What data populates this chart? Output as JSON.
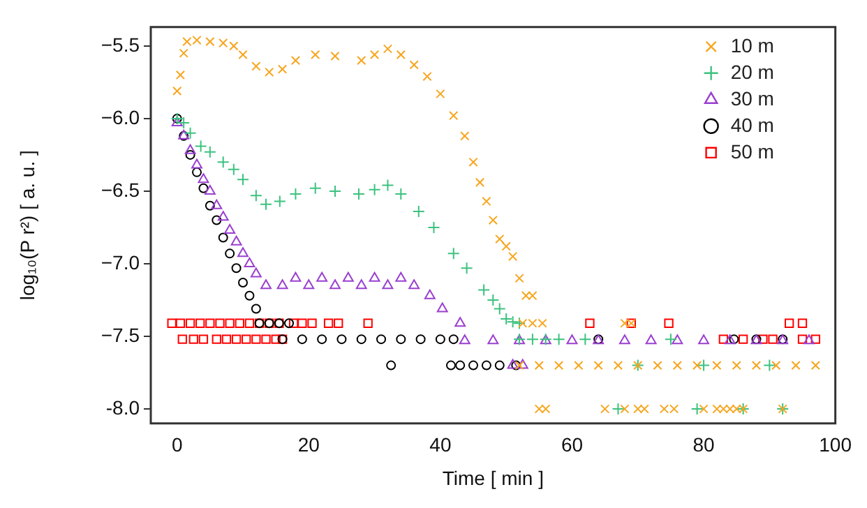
{
  "chart_data": {
    "type": "scatter",
    "xlabel": "Time [ min ]",
    "ylabel": "log₁₀(P r²) [ a. u. ]",
    "xlim": [
      -4,
      100
    ],
    "xticks": [
      0,
      20,
      40,
      60,
      80,
      100
    ],
    "ylim": [
      -8.1,
      -5.37
    ],
    "yticks": [
      {
        "value": -5.5,
        "label": "−5.5"
      },
      {
        "value": -6.0,
        "label": "−6.0"
      },
      {
        "value": -6.5,
        "label": "−6.5"
      },
      {
        "value": -7.0,
        "label": "−7.0"
      },
      {
        "value": -7.5,
        "label": "−7.5"
      },
      {
        "value": -8.0,
        "label": "-8.0"
      }
    ],
    "legend": "top right",
    "series": [
      {
        "name": "10 m",
        "color": "#f7a51e",
        "marker": "cross",
        "x": [
          0,
          0.5,
          1,
          1.5,
          3,
          5,
          7,
          8.6,
          10,
          12,
          14,
          16,
          18,
          21,
          24,
          28,
          30,
          32,
          34,
          36,
          38,
          40,
          42,
          43.7,
          45,
          46,
          47,
          48,
          49,
          50,
          51,
          52,
          53,
          54,
          52.5,
          54,
          55.5,
          68,
          69,
          52,
          55,
          58,
          61,
          64,
          67,
          70,
          73,
          76,
          79,
          82,
          85,
          88,
          91,
          94,
          97,
          55,
          56,
          65,
          68,
          70,
          71,
          74,
          75.5,
          80,
          82,
          83,
          84,
          85,
          86,
          92
        ],
        "values": [
          -5.81,
          -5.7,
          -5.55,
          -5.47,
          -5.46,
          -5.47,
          -5.48,
          -5.5,
          -5.56,
          -5.64,
          -5.68,
          -5.66,
          -5.6,
          -5.56,
          -5.57,
          -5.6,
          -5.56,
          -5.52,
          -5.56,
          -5.63,
          -5.71,
          -5.83,
          -5.98,
          -6.12,
          -6.3,
          -6.44,
          -6.57,
          -6.7,
          -6.83,
          -6.88,
          -6.95,
          -7.1,
          -7.22,
          -7.22,
          -7.41,
          -7.41,
          -7.41,
          -7.41,
          -7.41,
          -7.7,
          -7.7,
          -7.7,
          -7.7,
          -7.7,
          -7.7,
          -7.7,
          -7.7,
          -7.7,
          -7.7,
          -7.7,
          -7.7,
          -7.7,
          -7.7,
          -7.7,
          -7.7,
          -8.0,
          -8.0,
          -8.0,
          -8.0,
          -8.0,
          -8.0,
          -8.0,
          -8.0,
          -8.0,
          -8.0,
          -8.0,
          -8.0,
          -8.0,
          -8.0,
          -8.0
        ]
      },
      {
        "name": "20 m",
        "color": "#3cc27f",
        "marker": "plus",
        "x": [
          0,
          1,
          2,
          3.6,
          5,
          7,
          8.6,
          10,
          12,
          13.5,
          15.6,
          18,
          21,
          24,
          27.6,
          30,
          32,
          34,
          36.7,
          39,
          42,
          44,
          46.6,
          48,
          49,
          50,
          51,
          52,
          52,
          54,
          56,
          58,
          62,
          75,
          70,
          80,
          90,
          67,
          79,
          86,
          92
        ],
        "values": [
          -6.0,
          -6.03,
          -6.1,
          -6.19,
          -6.23,
          -6.3,
          -6.35,
          -6.42,
          -6.53,
          -6.59,
          -6.57,
          -6.52,
          -6.48,
          -6.5,
          -6.52,
          -6.49,
          -6.46,
          -6.52,
          -6.64,
          -6.75,
          -6.93,
          -7.03,
          -7.18,
          -7.25,
          -7.31,
          -7.38,
          -7.4,
          -7.41,
          -7.52,
          -7.52,
          -7.52,
          -7.52,
          -7.52,
          -7.52,
          -7.7,
          -7.7,
          -7.7,
          -8.0,
          -8.0,
          -8.0,
          -8.0
        ]
      },
      {
        "name": "30 m",
        "color": "#9a3fd0",
        "marker": "triangle",
        "x": [
          0,
          1,
          2,
          3,
          4,
          5,
          6,
          7,
          8,
          9,
          10,
          11,
          12,
          13.5,
          16,
          18,
          20,
          22,
          24,
          26,
          28,
          30,
          32,
          34,
          36,
          38.4,
          40.3,
          43,
          43.7,
          48,
          52,
          56,
          60,
          64,
          68,
          72,
          76,
          80,
          84,
          88,
          92,
          96,
          51,
          52.5
        ],
        "values": [
          -6.03,
          -6.12,
          -6.22,
          -6.32,
          -6.42,
          -6.5,
          -6.6,
          -6.68,
          -6.77,
          -6.85,
          -6.93,
          -7.0,
          -7.07,
          -7.15,
          -7.15,
          -7.1,
          -7.15,
          -7.1,
          -7.15,
          -7.1,
          -7.15,
          -7.1,
          -7.15,
          -7.1,
          -7.15,
          -7.22,
          -7.31,
          -7.41,
          -7.53,
          -7.53,
          -7.53,
          -7.53,
          -7.53,
          -7.53,
          -7.53,
          -7.53,
          -7.53,
          -7.53,
          -7.53,
          -7.53,
          -7.53,
          -7.53,
          -7.7,
          -7.7
        ]
      },
      {
        "name": "40 m",
        "color": "#000000",
        "marker": "circle",
        "x": [
          0,
          1,
          2,
          3,
          4,
          5,
          6,
          7,
          8,
          9,
          10,
          11,
          12,
          12.5,
          14,
          15.5,
          17,
          16,
          19,
          22,
          25,
          28,
          31,
          34,
          37,
          40,
          42,
          32.5,
          41.6,
          43,
          45,
          47,
          49,
          51.5,
          64,
          84.6,
          88,
          92
        ],
        "values": [
          -6.0,
          -6.12,
          -6.25,
          -6.37,
          -6.48,
          -6.6,
          -6.7,
          -6.82,
          -6.93,
          -7.03,
          -7.13,
          -7.22,
          -7.31,
          -7.41,
          -7.41,
          -7.41,
          -7.41,
          -7.52,
          -7.52,
          -7.52,
          -7.52,
          -7.52,
          -7.52,
          -7.52,
          -7.52,
          -7.52,
          -7.52,
          -7.7,
          -7.7,
          -7.7,
          -7.7,
          -7.7,
          -7.7,
          -7.7,
          -7.52,
          -7.52,
          -7.52,
          -7.52
        ]
      },
      {
        "name": "50 m",
        "color": "#ff0000",
        "marker": "square",
        "x": [
          -0.8,
          0.5,
          2,
          3.5,
          5,
          6.5,
          8,
          9.5,
          11,
          12.5,
          14,
          15.5,
          17.7,
          19,
          20.5,
          23,
          24.5,
          29,
          62.7,
          69,
          74.7,
          93,
          95,
          0.8,
          2.5,
          4,
          6,
          7.5,
          9,
          10.5,
          12,
          13.5,
          15,
          16,
          83,
          86,
          89,
          90.5,
          95,
          97
        ],
        "values": [
          -7.41,
          -7.41,
          -7.41,
          -7.41,
          -7.41,
          -7.41,
          -7.41,
          -7.41,
          -7.41,
          -7.41,
          -7.41,
          -7.41,
          -7.41,
          -7.41,
          -7.41,
          -7.41,
          -7.41,
          -7.41,
          -7.41,
          -7.41,
          -7.41,
          -7.41,
          -7.41,
          -7.52,
          -7.52,
          -7.52,
          -7.52,
          -7.52,
          -7.52,
          -7.52,
          -7.52,
          -7.52,
          -7.52,
          -7.52,
          -7.52,
          -7.52,
          -7.52,
          -7.52,
          -7.52,
          -7.52
        ]
      }
    ]
  }
}
